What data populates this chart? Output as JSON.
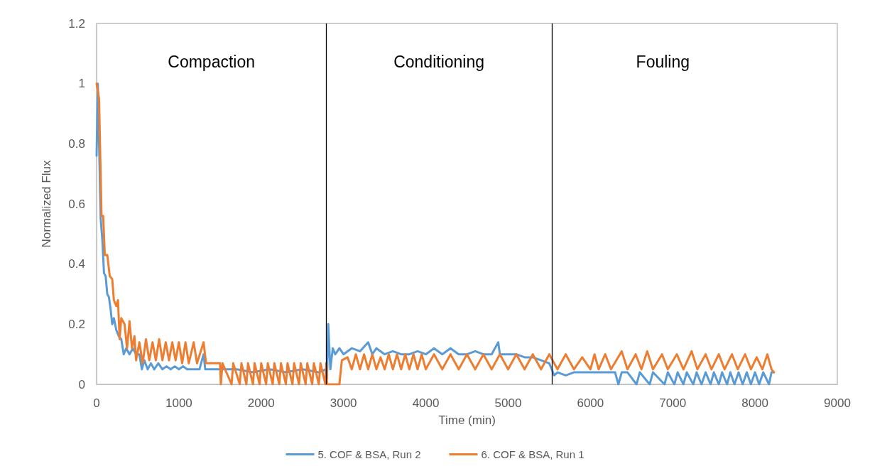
{
  "chart_data": {
    "type": "line",
    "xlabel": "Time (min)",
    "ylabel": "Normalized Flux",
    "xlim": [
      0,
      9000
    ],
    "xticks": [
      0,
      1000,
      2000,
      3000,
      4000,
      5000,
      6000,
      7000,
      8000,
      9000
    ],
    "ylim": [
      0,
      1.2
    ],
    "yticks": [
      0,
      0.2,
      0.4,
      0.6,
      0.8,
      1,
      1.2
    ],
    "grid": false,
    "legend": "bottom",
    "marker": "none",
    "line_style": "solid",
    "ref_lines": [
      {
        "axis": "x",
        "value": 2790,
        "color": "#000000"
      },
      {
        "axis": "x",
        "value": 5530,
        "color": "#000000"
      }
    ],
    "annotations": [
      "Compaction",
      "Conditioning",
      "Fouling"
    ],
    "series": [
      {
        "name": "5. COF & BSA, Run 2",
        "color": "#5b9bd5",
        "x": [
          0,
          15,
          30,
          50,
          70,
          90,
          110,
          130,
          150,
          170,
          190,
          210,
          240,
          270,
          300,
          330,
          360,
          400,
          440,
          480,
          520,
          550,
          580,
          620,
          660,
          700,
          750,
          800,
          850,
          900,
          950,
          1000,
          1050,
          1100,
          1150,
          1200,
          1250,
          1300,
          1320,
          1400,
          1500,
          1700,
          1900,
          2100,
          2300,
          2500,
          2700,
          2785,
          2800,
          2815,
          2840,
          2870,
          2900,
          2950,
          3000,
          3100,
          3200,
          3300,
          3350,
          3400,
          3500,
          3600,
          3700,
          3800,
          3900,
          4000,
          4100,
          4200,
          4300,
          4400,
          4500,
          4600,
          4700,
          4800,
          4880,
          4900,
          4950,
          5000,
          5100,
          5200,
          5300,
          5400,
          5500,
          5560,
          5600,
          5700,
          5800,
          5900,
          6000,
          6100,
          6200,
          6300,
          6340,
          6380,
          6450,
          6560,
          6600,
          6720,
          6760,
          6900,
          6940,
          7020,
          7060,
          7130,
          7170,
          7250,
          7290,
          7350,
          7400,
          7460,
          7500,
          7560,
          7600,
          7660,
          7700,
          7750,
          7800,
          7850,
          7900,
          7950,
          8000,
          8050,
          8100,
          8170,
          8200,
          8230
        ],
        "values": [
          0.76,
          1.0,
          0.8,
          0.55,
          0.48,
          0.37,
          0.36,
          0.3,
          0.29,
          0.25,
          0.2,
          0.22,
          0.18,
          0.16,
          0.15,
          0.1,
          0.12,
          0.1,
          0.12,
          0.1,
          0.1,
          0.05,
          0.08,
          0.05,
          0.07,
          0.05,
          0.07,
          0.05,
          0.06,
          0.05,
          0.06,
          0.05,
          0.06,
          0.05,
          0.05,
          0.05,
          0.05,
          0.1,
          0.05,
          0.05,
          0.05,
          0.05,
          0.04,
          0.05,
          0.04,
          0.05,
          0.04,
          0.05,
          0.02,
          0.2,
          0.05,
          0.12,
          0.1,
          0.12,
          0.1,
          0.12,
          0.11,
          0.14,
          0.1,
          0.12,
          0.1,
          0.11,
          0.1,
          0.1,
          0.11,
          0.1,
          0.12,
          0.1,
          0.12,
          0.1,
          0.1,
          0.11,
          0.1,
          0.1,
          0.14,
          0.1,
          0.1,
          0.1,
          0.1,
          0.09,
          0.09,
          0.08,
          0.07,
          0.03,
          0.04,
          0.03,
          0.04,
          0.04,
          0.04,
          0.04,
          0.04,
          0.04,
          0,
          0.04,
          0.04,
          0,
          0.04,
          0,
          0.04,
          0,
          0.04,
          0,
          0.04,
          0,
          0.04,
          0,
          0.04,
          0,
          0.04,
          0,
          0.04,
          0,
          0.04,
          0,
          0.04,
          0,
          0.04,
          0,
          0.04,
          0,
          0.04,
          0,
          0.04,
          0,
          0.04,
          0.04
        ]
      },
      {
        "name": "6. COF & BSA, Run 1",
        "color": "#ed7d31",
        "x": [
          0,
          30,
          60,
          80,
          100,
          130,
          160,
          190,
          210,
          240,
          260,
          280,
          300,
          340,
          370,
          400,
          430,
          460,
          480,
          520,
          560,
          600,
          640,
          680,
          720,
          760,
          800,
          840,
          880,
          920,
          960,
          1000,
          1040,
          1080,
          1120,
          1180,
          1220,
          1300,
          1330,
          1500,
          1510,
          1530,
          1640,
          1660,
          1740,
          1760,
          1820,
          1840,
          1900,
          1920,
          1980,
          2000,
          2060,
          2080,
          2140,
          2160,
          2220,
          2240,
          2300,
          2320,
          2380,
          2400,
          2460,
          2480,
          2540,
          2560,
          2620,
          2640,
          2700,
          2720,
          2780,
          2790,
          2800,
          2950,
          2980,
          3050,
          3100,
          3150,
          3200,
          3250,
          3300,
          3350,
          3400,
          3450,
          3500,
          3550,
          3600,
          3650,
          3700,
          3750,
          3800,
          3850,
          3900,
          3950,
          4000,
          4100,
          4200,
          4300,
          4400,
          4500,
          4600,
          4700,
          4800,
          4900,
          5000,
          5100,
          5200,
          5300,
          5400,
          5500,
          5600,
          5700,
          5800,
          5900,
          6000,
          6050,
          6100,
          6180,
          6250,
          6380,
          6450,
          6550,
          6620,
          6690,
          6760,
          6870,
          6940,
          7050,
          7130,
          7230,
          7300,
          7400,
          7470,
          7560,
          7630,
          7720,
          7790,
          7880,
          7950,
          8020,
          8090,
          8150,
          8200,
          8230
        ],
        "values": [
          1.0,
          0.95,
          0.56,
          0.56,
          0.43,
          0.43,
          0.36,
          0.35,
          0.28,
          0.26,
          0.28,
          0.15,
          0.22,
          0.2,
          0.12,
          0.21,
          0.12,
          0.16,
          0.08,
          0.14,
          0.07,
          0.15,
          0.08,
          0.14,
          0.08,
          0.15,
          0.08,
          0.14,
          0.08,
          0.14,
          0.08,
          0.14,
          0.07,
          0.14,
          0.07,
          0.14,
          0.07,
          0.14,
          0.07,
          0.07,
          0,
          0.07,
          0,
          0.07,
          0,
          0.07,
          0,
          0.07,
          0,
          0.07,
          0,
          0.07,
          0,
          0.07,
          0,
          0.07,
          0,
          0.07,
          0,
          0.07,
          0,
          0.07,
          0,
          0.07,
          0,
          0.07,
          0,
          0.07,
          0,
          0.07,
          0,
          0.07,
          0,
          0,
          0.08,
          0.09,
          0.05,
          0.1,
          0.05,
          0.1,
          0.05,
          0.1,
          0.05,
          0.09,
          0.05,
          0.1,
          0.05,
          0.1,
          0.05,
          0.1,
          0.05,
          0.1,
          0.05,
          0.1,
          0.05,
          0.1,
          0.05,
          0.1,
          0.05,
          0.1,
          0.05,
          0.1,
          0.05,
          0.1,
          0.05,
          0.1,
          0.05,
          0.1,
          0.05,
          0.1,
          0.05,
          0.1,
          0.05,
          0.09,
          0.05,
          0.1,
          0.05,
          0.1,
          0.05,
          0.11,
          0.05,
          0.1,
          0.05,
          0.11,
          0.05,
          0.1,
          0.05,
          0.1,
          0.05,
          0.11,
          0.05,
          0.1,
          0.05,
          0.1,
          0.05,
          0.1,
          0.05,
          0.1,
          0.05,
          0.09,
          0.05,
          0.1,
          0.05,
          0.04
        ]
      }
    ]
  }
}
